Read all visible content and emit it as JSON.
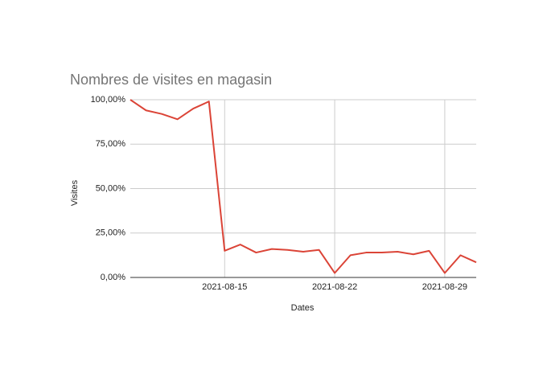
{
  "chart_data": {
    "type": "line",
    "title": "Nombres de visites en magasin",
    "x_label": "Dates",
    "y_label": "Visites",
    "x": [
      "2021-08-09",
      "2021-08-10",
      "2021-08-11",
      "2021-08-12",
      "2021-08-13",
      "2021-08-14",
      "2021-08-15",
      "2021-08-16",
      "2021-08-17",
      "2021-08-18",
      "2021-08-19",
      "2021-08-20",
      "2021-08-21",
      "2021-08-22",
      "2021-08-23",
      "2021-08-24",
      "2021-08-25",
      "2021-08-26",
      "2021-08-27",
      "2021-08-28",
      "2021-08-29",
      "2021-08-30",
      "2021-08-31"
    ],
    "series": [
      {
        "name": "Visites",
        "color": "#db4437",
        "values": [
          100,
          94,
          92,
          89,
          95,
          99,
          15,
          18.5,
          14,
          16,
          15.5,
          14.5,
          15.5,
          2.5,
          12.5,
          14,
          14,
          14.5,
          13,
          15,
          2.5,
          12.5,
          8.5
        ]
      }
    ],
    "xlim": [
      "2021-08-09",
      "2021-08-31"
    ],
    "xticks": [
      "2021-08-15",
      "2021-08-22",
      "2021-08-29"
    ],
    "ylim": [
      0,
      100
    ],
    "yticks": [
      {
        "value": 0,
        "label": "0,00%"
      },
      {
        "value": 25,
        "label": "25,00%"
      },
      {
        "value": 50,
        "label": "50,00%"
      },
      {
        "value": 75,
        "label": "75,00%"
      },
      {
        "value": 100,
        "label": "100,00%"
      }
    ],
    "grid": true
  }
}
